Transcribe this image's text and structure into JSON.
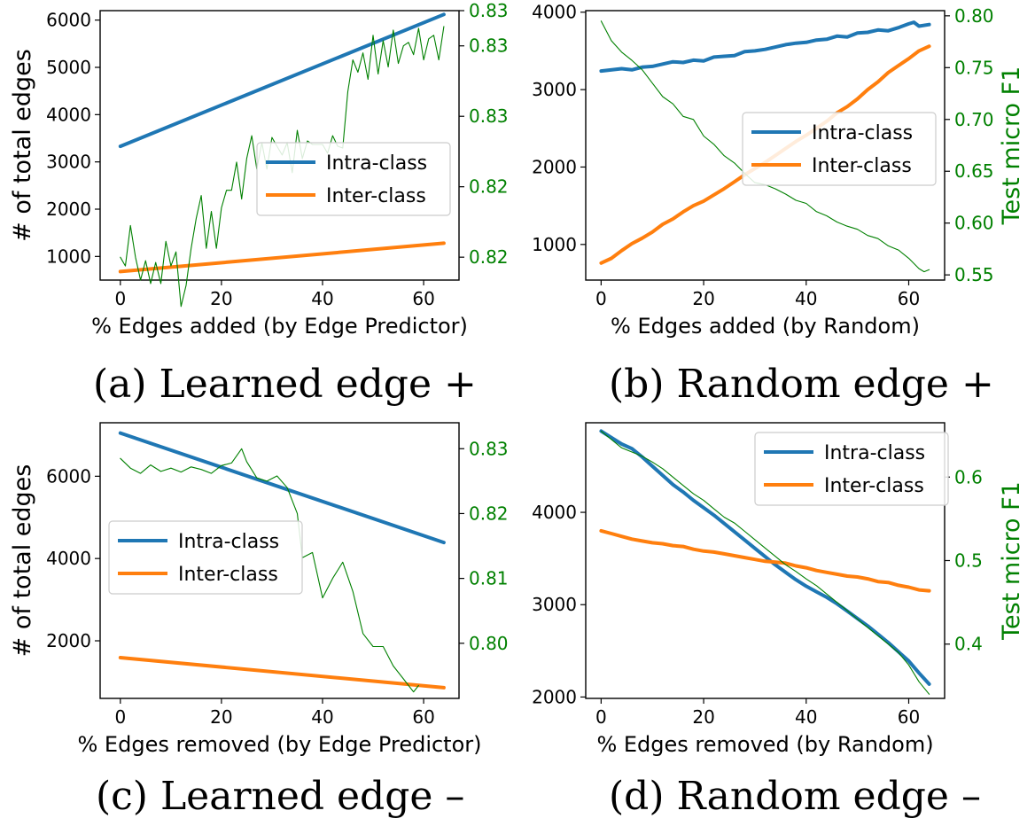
{
  "chart_data": [
    {
      "type": "line",
      "caption": "(a) Learned edge +",
      "xlabel": "% Edges added (by Edge Predictor)",
      "ylabel": "# of total edges",
      "y2label": "",
      "xlim": [
        -4,
        67
      ],
      "xticks": [
        0,
        20,
        40,
        60
      ],
      "ylim": [
        500,
        6200
      ],
      "yticks": [
        1000,
        2000,
        3000,
        4000,
        5000,
        6000
      ],
      "y2lim": [
        0.8187,
        0.834
      ],
      "y2ticks": [
        0.82,
        0.824,
        0.828,
        0.832,
        0.834
      ],
      "y2ticklabels": [
        "0.82",
        "0.82",
        "0.83",
        "0.83",
        "0.83"
      ],
      "legend": {
        "position": "center-right",
        "entries": [
          "Intra-class",
          "Inter-class"
        ]
      },
      "colors": {
        "intra": "#1f77b4",
        "inter": "#ff7f0e",
        "f1": "#008000"
      },
      "series": [
        {
          "name": "Intra-class",
          "axis": "left",
          "x": [
            0,
            64
          ],
          "values": [
            3330,
            6120
          ]
        },
        {
          "name": "Inter-class",
          "axis": "left",
          "x": [
            0,
            64
          ],
          "values": [
            680,
            1280
          ]
        },
        {
          "axis": "right",
          "x": [
            0,
            1,
            2,
            3,
            4,
            5,
            6,
            7,
            8,
            9,
            10,
            11,
            12,
            13,
            14,
            15,
            16,
            17,
            18,
            19,
            20,
            21,
            22,
            23,
            24,
            25,
            26,
            27,
            28,
            29,
            30,
            31,
            32,
            33,
            34,
            35,
            36,
            37,
            38,
            39,
            40,
            41,
            42,
            43,
            44,
            45,
            46,
            47,
            48,
            49,
            50,
            51,
            52,
            53,
            54,
            55,
            56,
            57,
            58,
            59,
            60,
            61,
            62,
            63,
            64
          ],
          "values": [
            0.82,
            0.8195,
            0.8218,
            0.82,
            0.8187,
            0.8198,
            0.8185,
            0.8197,
            0.8185,
            0.8209,
            0.8195,
            0.8203,
            0.8172,
            0.8184,
            0.8205,
            0.8222,
            0.8235,
            0.8205,
            0.8226,
            0.8205,
            0.8228,
            0.8238,
            0.8238,
            0.8254,
            0.8233,
            0.8256,
            0.8269,
            0.825,
            0.8265,
            0.825,
            0.8268,
            0.8263,
            0.8258,
            0.8265,
            0.8248,
            0.8272,
            0.8256,
            0.8266,
            0.8264,
            0.8264,
            0.8264,
            0.8259,
            0.8269,
            0.8263,
            0.8262,
            0.8294,
            0.8312,
            0.8305,
            0.8316,
            0.8301,
            0.8326,
            0.8304,
            0.8323,
            0.8308,
            0.8329,
            0.831,
            0.832,
            0.8322,
            0.8315,
            0.833,
            0.8312,
            0.8324,
            0.8326,
            0.8312,
            0.8331
          ]
        }
      ]
    },
    {
      "type": "line",
      "caption": "(b) Random edge +",
      "xlabel": "% Edges added (by Random)",
      "ylabel": "",
      "y2label": "Test micro F1",
      "xlim": [
        -3,
        67
      ],
      "xticks": [
        0,
        20,
        40,
        60
      ],
      "ylim": [
        540,
        4020
      ],
      "yticks": [
        1000,
        2000,
        3000,
        4000
      ],
      "y2lim": [
        0.545,
        0.805
      ],
      "y2ticks": [
        0.55,
        0.6,
        0.65,
        0.7,
        0.75,
        0.8
      ],
      "y2ticklabels": [
        "0.55",
        "0.60",
        "0.65",
        "0.70",
        "0.75",
        "0.80"
      ],
      "legend": {
        "position": "center-right",
        "entries": [
          "Intra-class",
          "Inter-class"
        ]
      },
      "colors": {
        "intra": "#1f77b4",
        "inter": "#ff7f0e",
        "f1": "#008000"
      },
      "series": [
        {
          "name": "Intra-class",
          "axis": "left",
          "x": [
            0,
            4,
            6,
            8,
            10,
            12,
            14,
            16,
            18,
            20,
            22,
            24,
            26,
            28,
            30,
            32,
            34,
            36,
            38,
            40,
            42,
            44,
            46,
            48,
            50,
            52,
            54,
            56,
            58,
            60,
            61,
            62,
            64
          ],
          "values": [
            3240,
            3270,
            3255,
            3290,
            3300,
            3330,
            3360,
            3350,
            3380,
            3370,
            3420,
            3430,
            3440,
            3490,
            3500,
            3520,
            3550,
            3580,
            3600,
            3610,
            3640,
            3650,
            3690,
            3680,
            3730,
            3740,
            3770,
            3760,
            3800,
            3850,
            3870,
            3820,
            3840
          ]
        },
        {
          "name": "Inter-class",
          "axis": "left",
          "x": [
            0,
            2,
            4,
            6,
            8,
            10,
            12,
            14,
            16,
            18,
            20,
            22,
            24,
            26,
            28,
            30,
            32,
            34,
            36,
            38,
            40,
            42,
            44,
            46,
            48,
            50,
            52,
            54,
            56,
            58,
            60,
            62,
            64
          ],
          "values": [
            760,
            820,
            920,
            1010,
            1080,
            1160,
            1260,
            1330,
            1420,
            1500,
            1560,
            1640,
            1720,
            1810,
            1900,
            1980,
            2060,
            2150,
            2240,
            2330,
            2410,
            2500,
            2590,
            2700,
            2780,
            2880,
            3000,
            3100,
            3220,
            3310,
            3400,
            3500,
            3560
          ]
        },
        {
          "axis": "right",
          "x": [
            0,
            2,
            4,
            6,
            8,
            10,
            12,
            14,
            16,
            18,
            20,
            22,
            24,
            26,
            28,
            30,
            32,
            34,
            36,
            38,
            40,
            42,
            44,
            46,
            48,
            50,
            52,
            54,
            56,
            58,
            60,
            62,
            63,
            64
          ],
          "values": [
            0.795,
            0.776,
            0.765,
            0.757,
            0.748,
            0.735,
            0.722,
            0.715,
            0.703,
            0.7,
            0.684,
            0.676,
            0.665,
            0.658,
            0.648,
            0.639,
            0.637,
            0.633,
            0.628,
            0.622,
            0.619,
            0.611,
            0.607,
            0.601,
            0.597,
            0.594,
            0.588,
            0.585,
            0.578,
            0.574,
            0.566,
            0.556,
            0.553,
            0.555
          ]
        }
      ]
    },
    {
      "type": "line",
      "caption": "(c) Learned edge –",
      "xlabel": "% Edges removed (by Edge Predictor)",
      "ylabel": "# of total edges",
      "y2label": "",
      "xlim": [
        -4,
        67
      ],
      "xticks": [
        0,
        20,
        40,
        60
      ],
      "ylim": [
        600,
        7300
      ],
      "yticks": [
        2000,
        4000,
        6000
      ],
      "y2lim": [
        0.7915,
        0.834
      ],
      "y2ticks": [
        0.8,
        0.81,
        0.82,
        0.83
      ],
      "y2ticklabels": [
        "0.80",
        "0.81",
        "0.82",
        "0.83"
      ],
      "legend": {
        "position": "center-left",
        "entries": [
          "Intra-class",
          "Inter-class"
        ]
      },
      "colors": {
        "intra": "#1f77b4",
        "inter": "#ff7f0e",
        "f1": "#008000"
      },
      "series": [
        {
          "name": "Intra-class",
          "axis": "left",
          "x": [
            0,
            64
          ],
          "values": [
            7050,
            4390
          ]
        },
        {
          "name": "Inter-class",
          "axis": "left",
          "x": [
            0,
            64
          ],
          "values": [
            1590,
            860
          ]
        },
        {
          "axis": "right",
          "x": [
            0,
            2,
            4,
            6,
            8,
            10,
            12,
            14,
            16,
            18,
            20,
            22,
            24,
            25,
            27,
            29,
            31,
            33,
            35,
            36,
            38,
            40,
            42,
            44,
            46,
            48,
            50,
            52,
            54,
            56,
            58,
            59
          ],
          "values": [
            0.8285,
            0.827,
            0.8262,
            0.8275,
            0.8265,
            0.827,
            0.8264,
            0.8272,
            0.8268,
            0.8262,
            0.8274,
            0.8278,
            0.83,
            0.828,
            0.8255,
            0.825,
            0.8258,
            0.824,
            0.82,
            0.8132,
            0.814,
            0.807,
            0.81,
            0.8125,
            0.808,
            0.8015,
            0.7995,
            0.7995,
            0.7965,
            0.7945,
            0.7925,
            0.7935
          ]
        }
      ]
    },
    {
      "type": "line",
      "caption": "(d) Random edge –",
      "xlabel": "% Edges removed (by Random)",
      "ylabel": "",
      "y2label": "Test micro F1",
      "xlim": [
        -3,
        67
      ],
      "xticks": [
        0,
        20,
        40,
        60
      ],
      "ylim": [
        1985,
        4970
      ],
      "yticks": [
        2000,
        3000,
        4000
      ],
      "y2lim": [
        0.335,
        0.665
      ],
      "y2ticks": [
        0.4,
        0.5,
        0.6
      ],
      "y2ticklabels": [
        "0.4",
        "0.5",
        "0.6"
      ],
      "legend": {
        "position": "top-right",
        "entries": [
          "Intra-class",
          "Inter-class"
        ]
      },
      "colors": {
        "intra": "#1f77b4",
        "inter": "#ff7f0e",
        "f1": "#008000"
      },
      "series": [
        {
          "name": "Intra-class",
          "axis": "left",
          "x": [
            0,
            2,
            4,
            6,
            8,
            10,
            12,
            14,
            16,
            18,
            20,
            22,
            24,
            26,
            28,
            30,
            32,
            34,
            36,
            38,
            40,
            42,
            44,
            46,
            48,
            50,
            52,
            54,
            56,
            58,
            60,
            62,
            64
          ],
          "values": [
            4880,
            4810,
            4740,
            4690,
            4600,
            4500,
            4400,
            4300,
            4220,
            4130,
            4050,
            3970,
            3880,
            3790,
            3700,
            3610,
            3520,
            3430,
            3350,
            3270,
            3200,
            3140,
            3080,
            3010,
            2930,
            2850,
            2770,
            2680,
            2590,
            2490,
            2390,
            2260,
            2140
          ]
        },
        {
          "name": "Inter-class",
          "axis": "left",
          "x": [
            0,
            2,
            4,
            6,
            8,
            10,
            12,
            14,
            16,
            18,
            20,
            22,
            24,
            26,
            28,
            30,
            32,
            34,
            36,
            38,
            40,
            42,
            44,
            46,
            48,
            50,
            52,
            54,
            56,
            58,
            60,
            62,
            64
          ],
          "values": [
            3800,
            3770,
            3740,
            3710,
            3690,
            3670,
            3660,
            3640,
            3630,
            3600,
            3580,
            3570,
            3550,
            3530,
            3510,
            3490,
            3470,
            3460,
            3450,
            3420,
            3400,
            3370,
            3350,
            3330,
            3310,
            3300,
            3280,
            3250,
            3240,
            3210,
            3190,
            3160,
            3150
          ]
        },
        {
          "axis": "right",
          "x": [
            0,
            2,
            4,
            6,
            8,
            10,
            12,
            14,
            16,
            18,
            20,
            22,
            24,
            26,
            28,
            30,
            32,
            34,
            36,
            38,
            40,
            42,
            44,
            46,
            48,
            50,
            52,
            54,
            56,
            58,
            60,
            62,
            64
          ],
          "values": [
            0.655,
            0.645,
            0.635,
            0.63,
            0.625,
            0.618,
            0.61,
            0.6,
            0.59,
            0.58,
            0.572,
            0.562,
            0.552,
            0.545,
            0.535,
            0.525,
            0.515,
            0.505,
            0.495,
            0.487,
            0.478,
            0.47,
            0.46,
            0.45,
            0.44,
            0.43,
            0.42,
            0.41,
            0.4,
            0.39,
            0.375,
            0.355,
            0.34
          ]
        }
      ]
    }
  ]
}
